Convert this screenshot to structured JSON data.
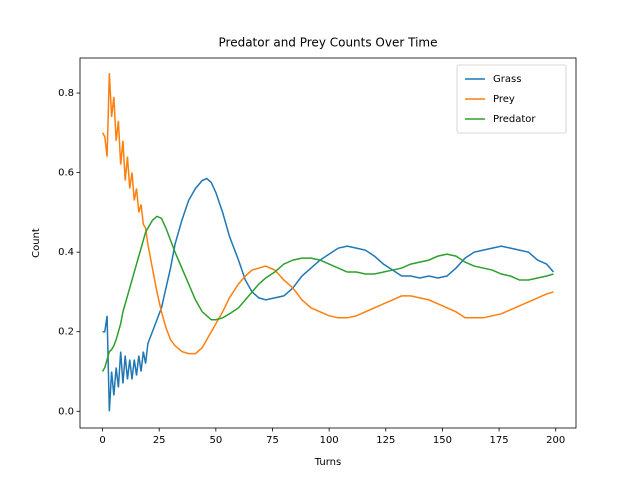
{
  "chart_data": {
    "type": "line",
    "title": "Predator and Prey Counts Over Time",
    "xlabel": "Turns",
    "ylabel": "Count",
    "x": [
      0,
      1,
      2,
      3,
      4,
      5,
      6,
      7,
      8,
      9,
      10,
      11,
      12,
      13,
      14,
      15,
      16,
      17,
      18,
      19,
      20,
      22,
      24,
      26,
      28,
      30,
      32,
      35,
      38,
      41,
      44,
      46,
      48,
      50,
      53,
      56,
      60,
      63,
      66,
      69,
      72,
      76,
      80,
      84,
      88,
      92,
      96,
      100,
      104,
      108,
      112,
      116,
      120,
      124,
      128,
      132,
      136,
      140,
      144,
      148,
      152,
      156,
      160,
      164,
      168,
      172,
      176,
      180,
      184,
      188,
      192,
      196,
      199
    ],
    "series": [
      {
        "name": "Grass",
        "color": "#1f77b4",
        "values": [
          0.2,
          0.2,
          0.24,
          0.0,
          0.1,
          0.04,
          0.11,
          0.06,
          0.15,
          0.07,
          0.14,
          0.08,
          0.13,
          0.08,
          0.13,
          0.09,
          0.14,
          0.1,
          0.15,
          0.12,
          0.17,
          0.2,
          0.23,
          0.26,
          0.31,
          0.36,
          0.42,
          0.48,
          0.53,
          0.56,
          0.58,
          0.585,
          0.575,
          0.55,
          0.5,
          0.44,
          0.38,
          0.33,
          0.3,
          0.285,
          0.28,
          0.285,
          0.29,
          0.31,
          0.34,
          0.36,
          0.38,
          0.395,
          0.41,
          0.415,
          0.41,
          0.405,
          0.39,
          0.37,
          0.355,
          0.34,
          0.34,
          0.335,
          0.34,
          0.335,
          0.34,
          0.36,
          0.385,
          0.4,
          0.405,
          0.41,
          0.415,
          0.41,
          0.405,
          0.4,
          0.38,
          0.37,
          0.35
        ]
      },
      {
        "name": "Prey",
        "color": "#ff7f0e",
        "values": [
          0.7,
          0.69,
          0.64,
          0.85,
          0.74,
          0.79,
          0.68,
          0.73,
          0.62,
          0.68,
          0.58,
          0.64,
          0.56,
          0.6,
          0.53,
          0.56,
          0.5,
          0.52,
          0.47,
          0.46,
          0.42,
          0.36,
          0.3,
          0.25,
          0.21,
          0.18,
          0.165,
          0.15,
          0.145,
          0.145,
          0.16,
          0.18,
          0.2,
          0.22,
          0.25,
          0.285,
          0.32,
          0.34,
          0.355,
          0.36,
          0.365,
          0.355,
          0.33,
          0.31,
          0.28,
          0.26,
          0.25,
          0.24,
          0.235,
          0.235,
          0.24,
          0.25,
          0.26,
          0.27,
          0.28,
          0.29,
          0.29,
          0.285,
          0.28,
          0.27,
          0.26,
          0.25,
          0.235,
          0.235,
          0.235,
          0.24,
          0.245,
          0.255,
          0.265,
          0.275,
          0.285,
          0.295,
          0.3
        ]
      },
      {
        "name": "Predator",
        "color": "#2ca02c",
        "values": [
          0.1,
          0.11,
          0.13,
          0.15,
          0.155,
          0.165,
          0.18,
          0.2,
          0.22,
          0.25,
          0.27,
          0.29,
          0.31,
          0.33,
          0.35,
          0.37,
          0.39,
          0.41,
          0.43,
          0.45,
          0.46,
          0.48,
          0.49,
          0.485,
          0.46,
          0.43,
          0.4,
          0.36,
          0.32,
          0.28,
          0.25,
          0.24,
          0.23,
          0.23,
          0.235,
          0.245,
          0.26,
          0.28,
          0.3,
          0.32,
          0.335,
          0.35,
          0.37,
          0.38,
          0.385,
          0.385,
          0.38,
          0.37,
          0.36,
          0.35,
          0.35,
          0.345,
          0.345,
          0.35,
          0.355,
          0.36,
          0.37,
          0.375,
          0.38,
          0.39,
          0.395,
          0.39,
          0.375,
          0.365,
          0.36,
          0.355,
          0.345,
          0.34,
          0.33,
          0.33,
          0.335,
          0.34,
          0.345
        ]
      }
    ],
    "xlim": [
      -9.95,
      208.95
    ],
    "xticks": [
      0,
      25,
      50,
      75,
      100,
      125,
      150,
      175,
      200
    ],
    "ylim": [
      -0.042,
      0.888
    ],
    "yticks": [
      {
        "value": 0,
        "label": "0.0"
      },
      {
        "value": 0.2,
        "label": "0.2"
      },
      {
        "value": 0.4,
        "label": "0.4"
      },
      {
        "value": 0.6,
        "label": "0.6"
      },
      {
        "value": 0.8,
        "label": "0.8"
      }
    ],
    "legend": "upper right",
    "grid": false
  }
}
